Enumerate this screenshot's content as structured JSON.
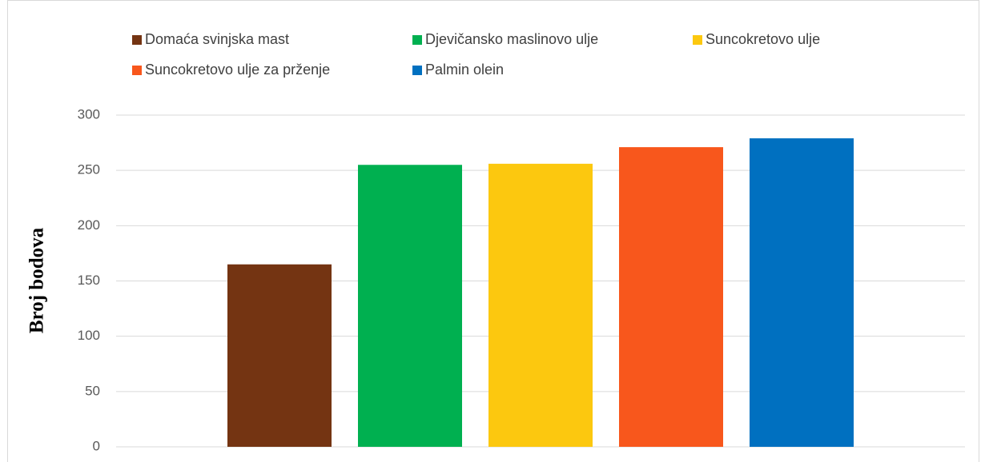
{
  "chart_data": {
    "type": "bar",
    "ylabel": "Broj bodova",
    "categories": [
      null
    ],
    "series": [
      {
        "name": "Domaća svinjska mast",
        "color": "#743412",
        "values": [
          165
        ]
      },
      {
        "name": "Djevičansko maslinovo ulje",
        "color": "#00b050",
        "values": [
          255
        ]
      },
      {
        "name": "Suncokretovo ulje",
        "color": "#fcc80f",
        "values": [
          256
        ]
      },
      {
        "name": "Suncokretovo ulje za prženje",
        "color": "#f8571c",
        "values": [
          271
        ]
      },
      {
        "name": "Palmin olein",
        "color": "#0070c0",
        "values": [
          279
        ]
      }
    ],
    "ylim": [
      0,
      300
    ],
    "yticks": [
      0,
      50,
      100,
      150,
      200,
      250,
      300
    ],
    "grid": true,
    "legend": "top"
  }
}
